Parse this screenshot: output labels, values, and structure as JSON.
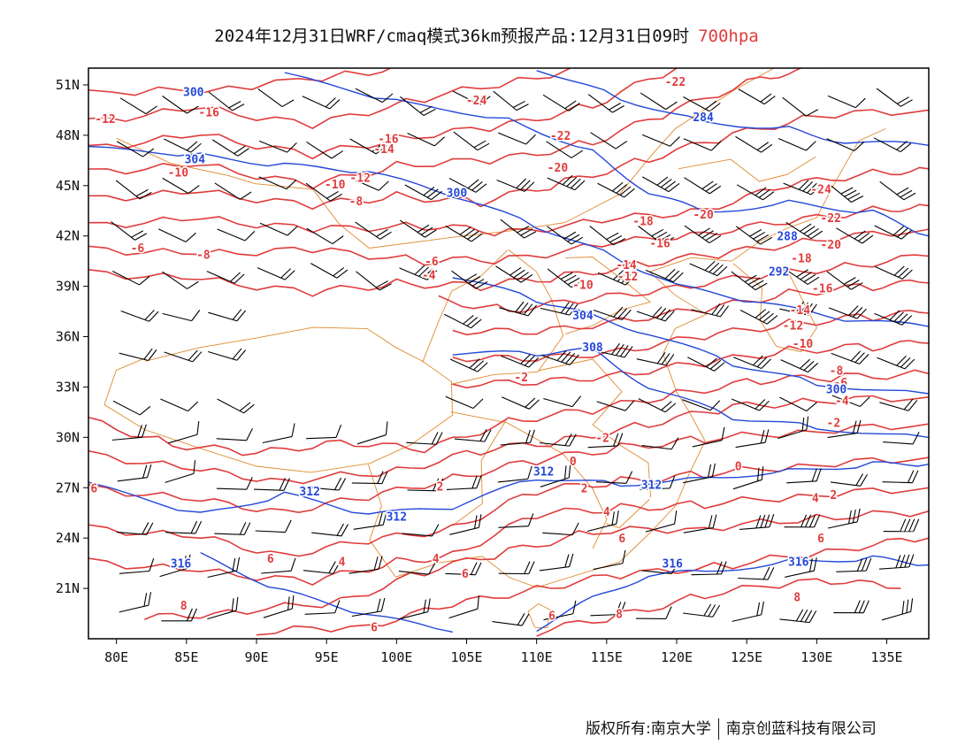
{
  "title": {
    "main": "2024年12月31日WRF/cmaq模式36km预报产品:12月31日09时",
    "level": "700hpa"
  },
  "map_data": {
    "type": "weather-contour-map",
    "lon_range": [
      78,
      138
    ],
    "lat_range": [
      18,
      52
    ],
    "x_ticks": [
      "80E",
      "85E",
      "90E",
      "95E",
      "100E",
      "105E",
      "110E",
      "115E",
      "120E",
      "125E",
      "130E",
      "135E"
    ],
    "x_tick_values": [
      80,
      85,
      90,
      95,
      100,
      105,
      110,
      115,
      120,
      125,
      130,
      135
    ],
    "y_ticks": [
      "21N",
      "24N",
      "27N",
      "30N",
      "33N",
      "36N",
      "39N",
      "42N",
      "45N",
      "48N",
      "51N"
    ],
    "y_tick_values": [
      21,
      24,
      27,
      30,
      33,
      36,
      39,
      42,
      45,
      48,
      51
    ],
    "colors": {
      "temperature": "#e03c3c",
      "height": "#2448d8",
      "boundary": "#e08a2e",
      "wind": "#000000"
    },
    "temperature_labels": [
      {
        "text": "-12",
        "lon": 79.2,
        "lat": 49.0
      },
      {
        "text": "-16",
        "lon": 86.6,
        "lat": 49.4
      },
      {
        "text": "-24",
        "lon": 105.7,
        "lat": 50.1
      },
      {
        "text": "-22",
        "lon": 119.9,
        "lat": 51.2
      },
      {
        "text": "-22",
        "lon": 111.7,
        "lat": 48.0
      },
      {
        "text": "-16",
        "lon": 99.4,
        "lat": 47.8
      },
      {
        "text": "-14",
        "lon": 99.1,
        "lat": 47.2
      },
      {
        "text": "-20",
        "lon": 111.5,
        "lat": 46.1
      },
      {
        "text": "-10",
        "lon": 84.4,
        "lat": 45.8
      },
      {
        "text": "-10",
        "lon": 95.6,
        "lat": 45.1
      },
      {
        "text": "-12",
        "lon": 97.4,
        "lat": 45.5
      },
      {
        "text": "-8",
        "lon": 97.1,
        "lat": 44.1
      },
      {
        "text": "-24",
        "lon": 130.3,
        "lat": 44.8
      },
      {
        "text": "-18",
        "lon": 117.6,
        "lat": 42.9
      },
      {
        "text": "-20",
        "lon": 121.9,
        "lat": 43.3
      },
      {
        "text": "-22",
        "lon": 131.0,
        "lat": 43.1
      },
      {
        "text": "-16",
        "lon": 118.8,
        "lat": 41.6
      },
      {
        "text": "-20",
        "lon": 131.0,
        "lat": 41.5
      },
      {
        "text": "-14",
        "lon": 116.4,
        "lat": 40.3
      },
      {
        "text": "-18",
        "lon": 128.9,
        "lat": 40.7
      },
      {
        "text": "-12",
        "lon": 116.5,
        "lat": 39.6
      },
      {
        "text": "-10",
        "lon": 113.3,
        "lat": 39.1
      },
      {
        "text": "-16",
        "lon": 130.4,
        "lat": 38.9
      },
      {
        "text": "-14",
        "lon": 128.8,
        "lat": 37.6
      },
      {
        "text": "-12",
        "lon": 128.3,
        "lat": 36.7
      },
      {
        "text": "-10",
        "lon": 129.0,
        "lat": 35.6
      },
      {
        "text": "-8",
        "lon": 131.4,
        "lat": 34.0
      },
      {
        "text": "-6",
        "lon": 131.7,
        "lat": 33.3
      },
      {
        "text": "-4",
        "lon": 131.8,
        "lat": 32.2
      },
      {
        "text": "-2",
        "lon": 131.2,
        "lat": 30.9
      },
      {
        "text": "-6",
        "lon": 81.5,
        "lat": 41.3
      },
      {
        "text": "-8",
        "lon": 86.2,
        "lat": 40.9
      },
      {
        "text": "-6",
        "lon": 102.5,
        "lat": 40.5
      },
      {
        "text": "-4",
        "lon": 102.3,
        "lat": 39.7
      },
      {
        "text": "-2",
        "lon": 108.9,
        "lat": 33.6
      },
      {
        "text": "-2",
        "lon": 114.7,
        "lat": 30.0
      },
      {
        "text": "0",
        "lon": 112.6,
        "lat": 28.6
      },
      {
        "text": "0",
        "lon": 124.4,
        "lat": 28.3
      },
      {
        "text": "2",
        "lon": 103.1,
        "lat": 27.1
      },
      {
        "text": "2",
        "lon": 113.4,
        "lat": 27.0
      },
      {
        "text": "2",
        "lon": 131.2,
        "lat": 26.6
      },
      {
        "text": "4",
        "lon": 129.9,
        "lat": 26.4
      },
      {
        "text": "4",
        "lon": 115.0,
        "lat": 25.6
      },
      {
        "text": "4",
        "lon": 96.1,
        "lat": 22.6
      },
      {
        "text": "4",
        "lon": 102.8,
        "lat": 22.8
      },
      {
        "text": "6",
        "lon": 78.4,
        "lat": 27.0
      },
      {
        "text": "6",
        "lon": 91.0,
        "lat": 22.8
      },
      {
        "text": "6",
        "lon": 104.9,
        "lat": 21.9
      },
      {
        "text": "6",
        "lon": 116.1,
        "lat": 24.0
      },
      {
        "text": "6",
        "lon": 130.3,
        "lat": 24.0
      },
      {
        "text": "8",
        "lon": 84.8,
        "lat": 20.0
      },
      {
        "text": "6",
        "lon": 98.4,
        "lat": 18.7
      },
      {
        "text": "6",
        "lon": 111.1,
        "lat": 19.4
      },
      {
        "text": "8",
        "lon": 115.9,
        "lat": 19.5
      },
      {
        "text": "8",
        "lon": 128.6,
        "lat": 20.5
      }
    ],
    "height_labels": [
      {
        "text": "300",
        "lon": 85.5,
        "lat": 50.6
      },
      {
        "text": "284",
        "lon": 121.9,
        "lat": 49.1
      },
      {
        "text": "304",
        "lon": 85.6,
        "lat": 46.6
      },
      {
        "text": "300",
        "lon": 104.3,
        "lat": 44.6
      },
      {
        "text": "288",
        "lon": 127.9,
        "lat": 42.0
      },
      {
        "text": "292",
        "lon": 127.3,
        "lat": 39.9
      },
      {
        "text": "304",
        "lon": 113.3,
        "lat": 37.3
      },
      {
        "text": "308",
        "lon": 114.0,
        "lat": 35.4
      },
      {
        "text": "300",
        "lon": 131.4,
        "lat": 32.9
      },
      {
        "text": "312",
        "lon": 110.5,
        "lat": 28.0
      },
      {
        "text": "312",
        "lon": 118.2,
        "lat": 27.2
      },
      {
        "text": "312",
        "lon": 93.8,
        "lat": 26.8
      },
      {
        "text": "312",
        "lon": 100.0,
        "lat": 25.3
      },
      {
        "text": "316",
        "lon": 84.6,
        "lat": 22.5
      },
      {
        "text": "316",
        "lon": 119.7,
        "lat": 22.5
      },
      {
        "text": "316",
        "lon": 128.7,
        "lat": 22.6
      }
    ]
  },
  "footer": {
    "left": "版权所有:南京大学",
    "right": "南京创蓝科技有限公司"
  }
}
